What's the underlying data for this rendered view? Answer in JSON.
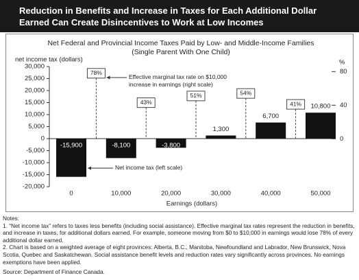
{
  "header": {
    "title": "Reduction in Benefits and Increase in Taxes for Each Additional Dollar Earned Can Create Disincentives to Work at Low Incomes"
  },
  "chart_data": {
    "type": "bar",
    "title": "Net Federal and Provincial Income Taxes Paid by Low- and Middle-Income Families",
    "subtitle": "(Single Parent With One Child)",
    "ylabel": "net income tax (dollars)",
    "y2label": "%",
    "xlabel": "Earnings (dollars)",
    "x": [
      0,
      10000,
      20000,
      30000,
      40000,
      50000
    ],
    "xlim": [
      -4400,
      52750
    ],
    "xticks": [
      0,
      {
        "value": 10000,
        "label": "10,000"
      },
      {
        "value": 20000,
        "label": "20,000"
      },
      {
        "value": 30000,
        "label": "30,000"
      },
      {
        "value": 40000,
        "label": "40,000"
      },
      {
        "value": 50000,
        "label": "50,000"
      }
    ],
    "ylim": [
      -20000,
      30000
    ],
    "yticks": [
      {
        "value": -20000,
        "label": "-20,000"
      },
      {
        "value": -15000,
        "label": "-15,000"
      },
      {
        "value": -10000,
        "label": "-10,000"
      },
      {
        "value": -5000,
        "label": "-5,000"
      },
      0,
      {
        "value": 5000,
        "label": "5,000"
      },
      {
        "value": 10000,
        "label": "10,000"
      },
      {
        "value": 15000,
        "label": "15,000"
      },
      {
        "value": 20000,
        "label": "20,000"
      },
      {
        "value": 25000,
        "label": "25,000"
      },
      {
        "value": 30000,
        "label": "30,000"
      }
    ],
    "y2lim": [
      -57,
      86
    ],
    "y2ticks": [
      0,
      40,
      80
    ],
    "series": [
      {
        "name": "Net income tax (left scale)",
        "color": "#111111",
        "values": [
          -15900,
          -8100,
          -3800,
          1300,
          6700,
          10800
        ],
        "value_labels": [
          "-15,900",
          "-8,100",
          "-3,800",
          "1,300",
          "6,700",
          "10,800"
        ]
      },
      {
        "name": "Effective marginal tax rate on $10,000 increase in earnings (right scale)",
        "axis": "y2",
        "color": "#444444",
        "x": [
          5000,
          15000,
          25000,
          35000,
          45000
        ],
        "values": [
          78,
          43,
          51,
          54,
          41
        ],
        "value_labels": [
          "78%",
          "43%",
          "51%",
          "54%",
          "41%"
        ]
      }
    ]
  },
  "notes": {
    "heading": "Notes:",
    "items": [
      "1. “Net income tax” refers to taxes less benefits (including social assistance). Effective marginal tax rates represent the reduction in benefits, and increase in taxes, for additional dollars earned. For example, someone moving from $0 to $10,000 in earnings would lose 78% of every additional dollar earned.",
      "2. Chart is based on a weighted average of eight provinces: Alberta, B.C., Manitoba, Newfoundland and Labrador, New Brunswick, Nova Scotia, Quebec and Saskatchewan. Social assistance benefit levels and reduction rates vary significantly across provinces. No earnings exemptions have been applied."
    ],
    "source": "Source: Department of Finance Canada."
  }
}
